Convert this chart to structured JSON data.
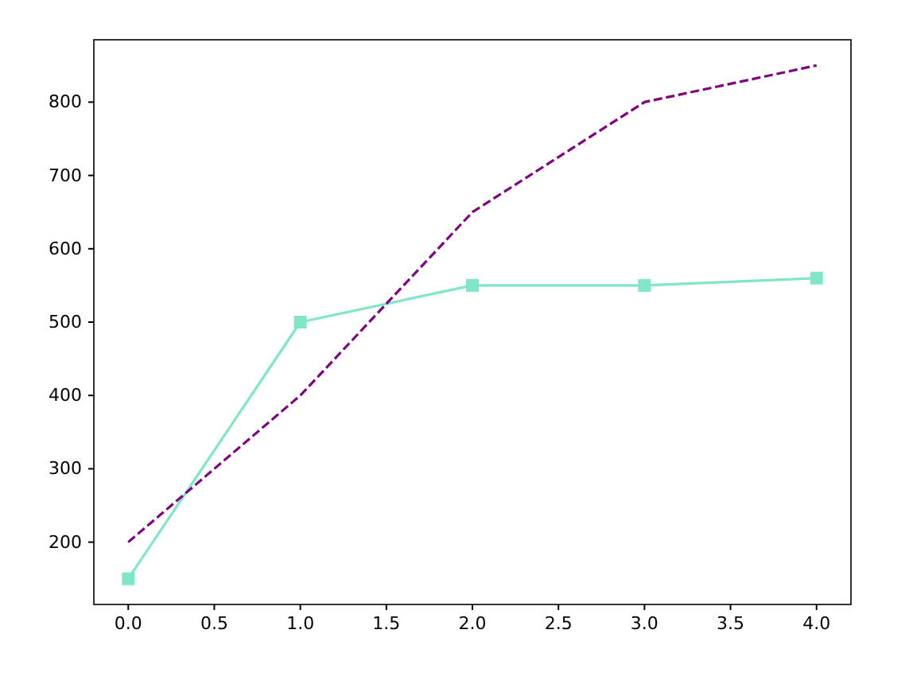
{
  "chart_data": {
    "type": "line",
    "x": [
      0,
      1,
      2,
      3,
      4
    ],
    "series": [
      {
        "color": "#7fe6c8",
        "values": [
          150,
          500,
          550,
          550,
          560
        ],
        "marker": "square",
        "line_style": "solid"
      },
      {
        "color": "#800080",
        "values": [
          200,
          400,
          650,
          800,
          850
        ],
        "marker": "none",
        "line_style": "dashed"
      }
    ],
    "xlim": [
      -0.2,
      4.2
    ],
    "xticks": [
      {
        "value": 0,
        "label": "0.0"
      },
      {
        "value": 0.5,
        "label": "0.5"
      },
      {
        "value": 1,
        "label": "1.0"
      },
      {
        "value": 1.5,
        "label": "1.5"
      },
      {
        "value": 2,
        "label": "2.0"
      },
      {
        "value": 2.5,
        "label": "2.5"
      },
      {
        "value": 3,
        "label": "3.0"
      },
      {
        "value": 3.5,
        "label": "3.5"
      },
      {
        "value": 4,
        "label": "4.0"
      }
    ],
    "ylim": [
      115,
      885
    ],
    "yticks": [
      200,
      300,
      400,
      500,
      600,
      700,
      800
    ],
    "grid": false
  }
}
